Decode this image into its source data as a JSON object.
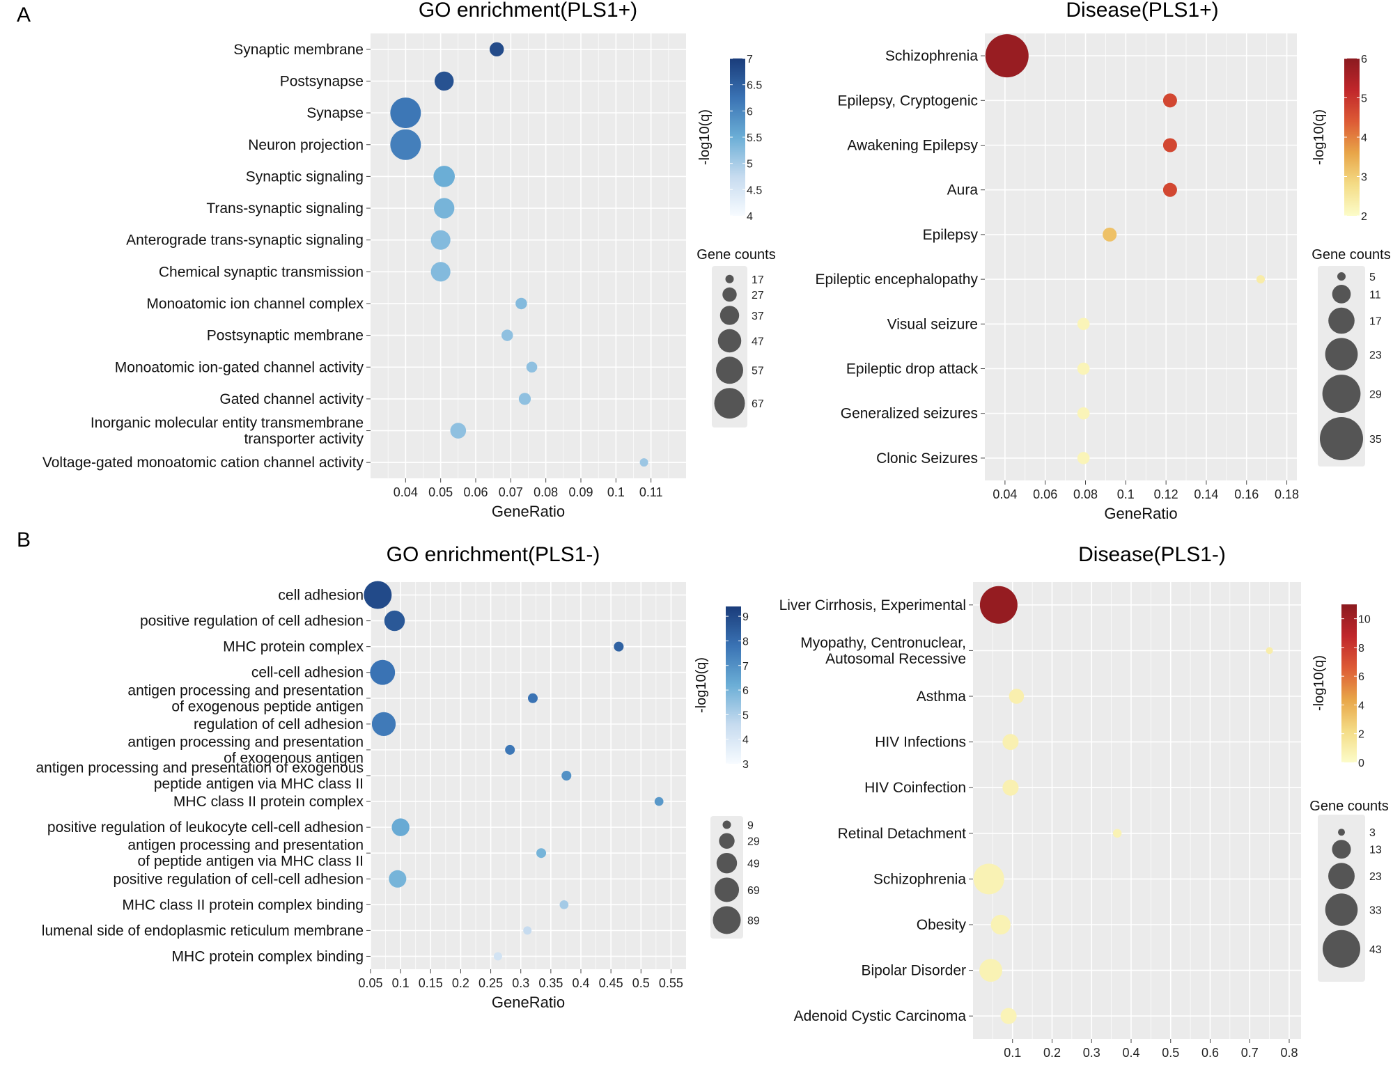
{
  "panel_labels": [
    "A",
    "B"
  ],
  "chart_data": [
    {
      "type": "scatter",
      "title": "GO enrichment(PLS1+)",
      "xlabel": "GeneRatio",
      "xlim": [
        0.03,
        0.12
      ],
      "xticks": [
        0.04,
        0.05,
        0.06,
        0.07,
        0.08,
        0.09,
        0.1,
        0.11
      ],
      "xtick_labels": [
        "0.04",
        "0.05",
        "0.06",
        "0.07",
        "0.08",
        "0.09",
        "0.1",
        "0.11"
      ],
      "categories": [
        [
          "Synaptic membrane"
        ],
        [
          "Postsynapse"
        ],
        [
          "Synapse"
        ],
        [
          "Neuron projection"
        ],
        [
          "Synaptic signaling"
        ],
        [
          "Trans-synaptic signaling"
        ],
        [
          "Anterograde trans-synaptic signaling"
        ],
        [
          "Chemical synaptic transmission"
        ],
        [
          "Monoatomic ion channel complex"
        ],
        [
          "Postsynaptic membrane"
        ],
        [
          "Monoatomic ion-gated channel activity"
        ],
        [
          "Gated channel activity"
        ],
        [
          "Inorganic molecular entity transmembrane",
          "transporter activity"
        ],
        [
          "Voltage-gated monoatomic cation channel activity"
        ]
      ],
      "x": [
        0.066,
        0.051,
        0.04,
        0.04,
        0.051,
        0.051,
        0.05,
        0.05,
        0.073,
        0.069,
        0.076,
        0.074,
        0.055,
        0.108
      ],
      "counts": [
        27,
        37,
        67,
        67,
        42,
        40,
        38,
        38,
        22,
        22,
        21,
        23,
        30,
        17
      ],
      "color_values": [
        6.8,
        6.7,
        6.2,
        6.1,
        5.5,
        5.4,
        5.3,
        5.3,
        5.3,
        5.2,
        5.2,
        5.2,
        5.2,
        5.1
      ],
      "color_range": [
        4,
        7
      ],
      "color_ticks": [
        4,
        4.5,
        5,
        5.5,
        6,
        6.5,
        7
      ],
      "color_tick_labels": [
        "4",
        "4.5",
        "5",
        "5.5",
        "6",
        "6.5",
        "7"
      ],
      "color_scale": [
        "#f7fbff",
        "#c6dbef",
        "#6baed6",
        "#3a73b4",
        "#1a3c7a"
      ],
      "color_title": "-log10(q)",
      "size_title": "Gene counts",
      "size_levels": [
        17,
        27,
        37,
        47,
        57,
        67
      ],
      "size_labels": [
        "17",
        "27",
        "37",
        "47",
        "57",
        "67"
      ],
      "size_range": [
        17,
        67
      ]
    },
    {
      "type": "scatter",
      "title": "Disease(PLS1+)",
      "xlabel": "GeneRatio",
      "xlim": [
        0.03,
        0.185
      ],
      "xticks": [
        0.04,
        0.06,
        0.08,
        0.1,
        0.12,
        0.14,
        0.16,
        0.18
      ],
      "xtick_labels": [
        "0.04",
        "0.06",
        "0.08",
        "0.1",
        "0.12",
        "0.14",
        "0.16",
        "0.18"
      ],
      "categories": [
        [
          "Schizophrenia"
        ],
        [
          "Epilepsy, Cryptogenic"
        ],
        [
          "Awakening Epilepsy"
        ],
        [
          "Aura"
        ],
        [
          "Epilepsy"
        ],
        [
          "Epileptic encephalopathy"
        ],
        [
          "Visual seizure"
        ],
        [
          "Epileptic drop attack"
        ],
        [
          "Generalized seizures"
        ],
        [
          "Clonic Seizures"
        ]
      ],
      "x": [
        0.041,
        0.122,
        0.122,
        0.122,
        0.092,
        0.167,
        0.079,
        0.079,
        0.079,
        0.079
      ],
      "counts": [
        35,
        8,
        8,
        8,
        8,
        5,
        7,
        7,
        7,
        7
      ],
      "color_values": [
        5.8,
        4.7,
        4.7,
        4.7,
        3.2,
        2.4,
        2.2,
        2.2,
        2.2,
        2.2
      ],
      "color_range": [
        2,
        6
      ],
      "color_ticks": [
        2,
        3,
        4,
        5,
        6
      ],
      "color_tick_labels": [
        "2",
        "3",
        "4",
        "5",
        "6"
      ],
      "color_scale": [
        "#fcfcc9",
        "#f4dc86",
        "#e8a548",
        "#dd5a35",
        "#c0262b",
        "#8b1a1f"
      ],
      "color_title": "-log10(q)",
      "size_title": "Gene counts",
      "size_levels": [
        5,
        11,
        17,
        23,
        29,
        35
      ],
      "size_labels": [
        "5",
        "11",
        "17",
        "23",
        "29",
        "35"
      ],
      "size_range": [
        5,
        35
      ]
    },
    {
      "type": "scatter",
      "title": "GO enrichment(PLS1-)",
      "xlabel": "GeneRatio",
      "xlim": [
        0.05,
        0.575
      ],
      "xticks": [
        0.05,
        0.1,
        0.15,
        0.2,
        0.25,
        0.3,
        0.35,
        0.4,
        0.45,
        0.5,
        0.55
      ],
      "xtick_labels": [
        "0.05",
        "0.1",
        "0.15",
        "0.2",
        "0.25",
        "0.3",
        "0.35",
        "0.4",
        "0.45",
        "0.5",
        "0.55"
      ],
      "categories": [
        [
          "cell adhesion"
        ],
        [
          "positive regulation of cell adhesion"
        ],
        [
          "MHC protein complex"
        ],
        [
          "cell-cell adhesion"
        ],
        [
          "antigen processing and presentation",
          "of exogenous peptide antigen"
        ],
        [
          "regulation of cell adhesion"
        ],
        [
          "antigen processing and presentation",
          "of exogenous antigen"
        ],
        [
          "antigen processing and presentation of exogenous",
          "peptide antigen via MHC class II"
        ],
        [
          "MHC class II protein complex"
        ],
        [
          "positive regulation of leukocyte cell-cell adhesion"
        ],
        [
          "antigen processing and presentation",
          "of peptide antigen via MHC class II"
        ],
        [
          "positive regulation of cell-cell adhesion"
        ],
        [
          "MHC class II protein complex binding"
        ],
        [
          "lumenal side of endoplasmic reticulum membrane"
        ],
        [
          "MHC protein complex binding"
        ]
      ],
      "x": [
        0.062,
        0.09,
        0.463,
        0.07,
        0.32,
        0.072,
        0.282,
        0.376,
        0.53,
        0.1,
        0.334,
        0.095,
        0.372,
        0.311,
        0.262
      ],
      "counts": [
        89,
        49,
        12,
        72,
        12,
        66,
        12,
        12,
        10,
        37,
        12,
        36,
        10,
        9,
        9
      ],
      "color_values": [
        9.0,
        8.6,
        8.3,
        7.8,
        7.8,
        7.6,
        7.7,
        7.0,
        6.8,
        6.3,
        6.0,
        6.0,
        5.2,
        4.6,
        4.2
      ],
      "color_range": [
        3,
        9.4
      ],
      "color_ticks": [
        3,
        4,
        5,
        6,
        7,
        8,
        9
      ],
      "color_tick_labels": [
        "3",
        "4",
        "5",
        "6",
        "7",
        "8",
        "9"
      ],
      "color_scale": [
        "#f7fbff",
        "#c6dbef",
        "#6baed6",
        "#3a73b4",
        "#1a3c7a"
      ],
      "color_title": "-log10(q)",
      "size_title": "",
      "size_levels": [
        9,
        29,
        49,
        69,
        89
      ],
      "size_labels": [
        "9",
        "29",
        "49",
        "69",
        "89"
      ],
      "size_range": [
        9,
        89
      ]
    },
    {
      "type": "scatter",
      "title": "Disease(PLS1-)",
      "xlabel": "GeneRatio",
      "xlim": [
        0.0,
        0.83
      ],
      "xticks": [
        0.1,
        0.2,
        0.3,
        0.4,
        0.5,
        0.6,
        0.7,
        0.8
      ],
      "xtick_labels": [
        "0.1",
        "0.2",
        "0.3",
        "0.4",
        "0.5",
        "0.6",
        "0.7",
        "0.8"
      ],
      "categories": [
        [
          "Liver Cirrhosis, Experimental"
        ],
        [
          "Myopathy, Centronuclear,",
          "Autosomal Recessive"
        ],
        [
          "Asthma"
        ],
        [
          "HIV Infections"
        ],
        [
          "HIV Coinfection"
        ],
        [
          "Retinal Detachment"
        ],
        [
          "Schizophrenia"
        ],
        [
          "Obesity"
        ],
        [
          "Bipolar Disorder"
        ],
        [
          "Adenoid Cystic Carcinoma"
        ]
      ],
      "x": [
        0.065,
        0.75,
        0.11,
        0.095,
        0.095,
        0.365,
        0.04,
        0.07,
        0.045,
        0.09
      ],
      "counts": [
        43,
        3,
        9,
        10,
        10,
        4,
        30,
        14,
        18,
        10
      ],
      "color_values": [
        10.6,
        1.0,
        0.9,
        0.8,
        0.8,
        0.7,
        0.7,
        0.7,
        0.7,
        0.6
      ],
      "color_range": [
        0,
        11
      ],
      "color_ticks": [
        0,
        2,
        4,
        6,
        8,
        10
      ],
      "color_tick_labels": [
        "0",
        "2",
        "4",
        "6",
        "8",
        "10"
      ],
      "color_scale": [
        "#fcfcc9",
        "#f4dc86",
        "#e8a548",
        "#dd5a35",
        "#c0262b",
        "#8b1a1f"
      ],
      "color_title": "-log10(q)",
      "size_title": "Gene counts",
      "size_levels": [
        3,
        13,
        23,
        33,
        43
      ],
      "size_labels": [
        "3",
        "13",
        "23",
        "33",
        "43"
      ],
      "size_range": [
        3,
        43
      ]
    }
  ]
}
